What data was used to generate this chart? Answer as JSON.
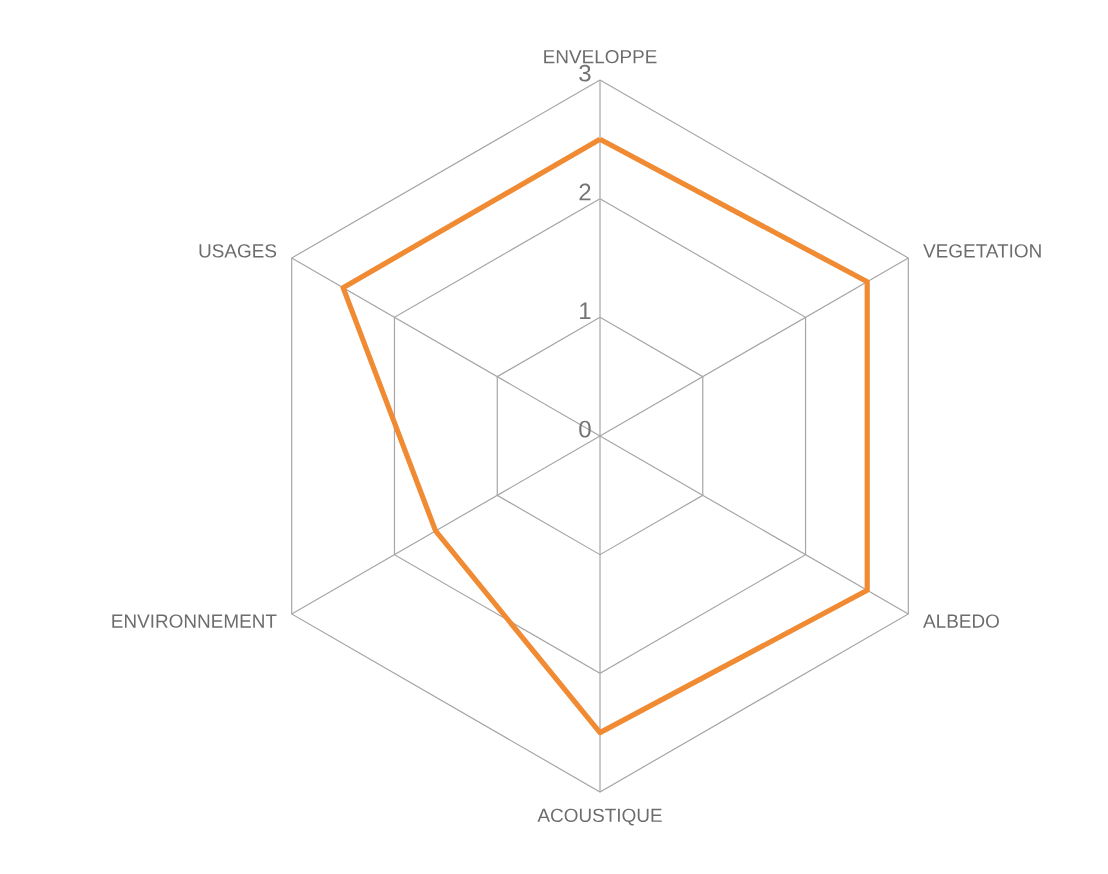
{
  "chart_data": {
    "type": "radar",
    "categories": [
      "ENVELOPPE",
      "VEGETATION",
      "ALBEDO",
      "ACOUSTIQUE",
      "ENVIRONNEMENT",
      "USAGES"
    ],
    "series": [
      {
        "color": "#f08a33",
        "values": [
          2.5,
          2.6,
          2.6,
          2.5,
          1.6,
          2.5
        ]
      }
    ],
    "ylim": [
      0,
      3
    ],
    "yticks": [
      0,
      1,
      2,
      3
    ],
    "grid": true
  }
}
